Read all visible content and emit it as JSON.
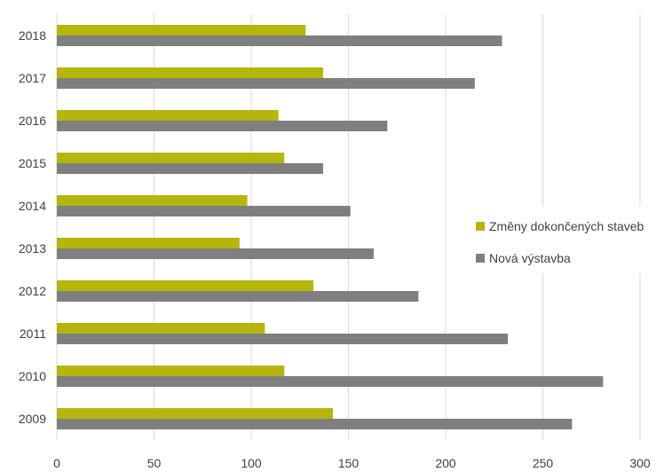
{
  "chart_data": {
    "type": "bar",
    "orientation": "horizontal",
    "categories": [
      "2009",
      "2010",
      "2011",
      "2012",
      "2013",
      "2014",
      "2015",
      "2016",
      "2017",
      "2018"
    ],
    "series": [
      {
        "name": "Změny dokončených staveb",
        "color": "#b5b50c",
        "values": [
          142,
          117,
          107,
          132,
          94,
          98,
          117,
          114,
          137,
          128
        ]
      },
      {
        "name": "Nová výstavba",
        "color": "#7f7f7f",
        "values": [
          265,
          281,
          232,
          186,
          163,
          151,
          137,
          170,
          215,
          229
        ]
      }
    ],
    "x_ticks": [
      "0",
      "50",
      "100",
      "150",
      "200",
      "250",
      "300"
    ],
    "xlim": [
      0,
      300
    ],
    "grid": "vertical",
    "legend_placement": "right",
    "title": "",
    "xlabel": "",
    "ylabel": ""
  }
}
